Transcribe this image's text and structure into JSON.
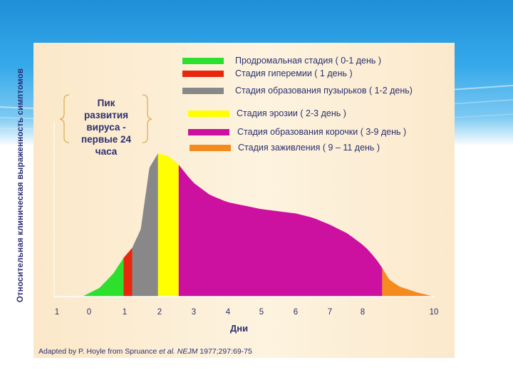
{
  "chart_data": {
    "type": "area",
    "title": "",
    "ylabel": "Относительная клиническая выраженность симптомов",
    "xlabel": "Дни",
    "x_tick_labels": [
      "1",
      "0",
      "1",
      "2",
      "3",
      "4",
      "5",
      "6",
      "7",
      "8",
      "10"
    ],
    "annotation": [
      "Пик",
      "развития",
      "вируса -",
      "первые 24",
      "часа"
    ],
    "legend": [
      {
        "label": "Продромальная стадия ( 0-1 день )",
        "color": "#2ee02e"
      },
      {
        "label": "Стадия гиперемии ( 1 день )",
        "color": "#e8270c"
      },
      {
        "label": "Стадия образования пузырьков ( 1-2 день)",
        "color": "#888888"
      },
      {
        "label": "Стадия эрозии ( 2-3 день )",
        "color": "#ffff00"
      },
      {
        "label": "Стадия образования корочки ( 3-9 день )",
        "color": "#cc10a0"
      },
      {
        "label": "Стадия заживления ( 9 – 11 день )",
        "color": "#f58a1f"
      }
    ],
    "stages": [
      {
        "name": "Продромальная стадия",
        "start": 0,
        "end": 1,
        "color": "#2ee02e"
      },
      {
        "name": "Стадия гиперемии",
        "start": 1,
        "end": 1.25,
        "color": "#e8270c"
      },
      {
        "name": "Стадия образования пузырьков",
        "start": 1.25,
        "end": 2,
        "color": "#888888"
      },
      {
        "name": "Стадия эрозии",
        "start": 2,
        "end": 2.6,
        "color": "#ffff00"
      },
      {
        "name": "Стадия образования корочки",
        "start": 2.6,
        "end": 8.5,
        "color": "#cc10a0"
      },
      {
        "name": "Стадия заживления",
        "start": 8.5,
        "end": 10,
        "color": "#f58a1f"
      }
    ],
    "curve": {
      "x": [
        -0.2,
        0.3,
        0.7,
        1.0,
        1.25,
        1.5,
        1.75,
        2.0,
        2.3,
        2.6,
        3.0,
        3.5,
        4.0,
        5.0,
        6.0,
        6.5,
        7.0,
        7.5,
        8.0,
        8.3,
        8.5,
        8.7,
        9.0,
        9.5,
        10.0
      ],
      "y": [
        0.0,
        0.06,
        0.16,
        0.27,
        0.34,
        0.47,
        0.9,
        1.0,
        0.98,
        0.92,
        0.8,
        0.71,
        0.66,
        0.61,
        0.58,
        0.55,
        0.5,
        0.44,
        0.35,
        0.27,
        0.2,
        0.12,
        0.07,
        0.03,
        0.0
      ]
    }
  },
  "credit": {
    "prefix": "Adapted by P. Hoyle from Spruance",
    "italic_1": "et al.",
    "italic_2": "NEJM",
    "suffix": "1977;297:69-75"
  }
}
